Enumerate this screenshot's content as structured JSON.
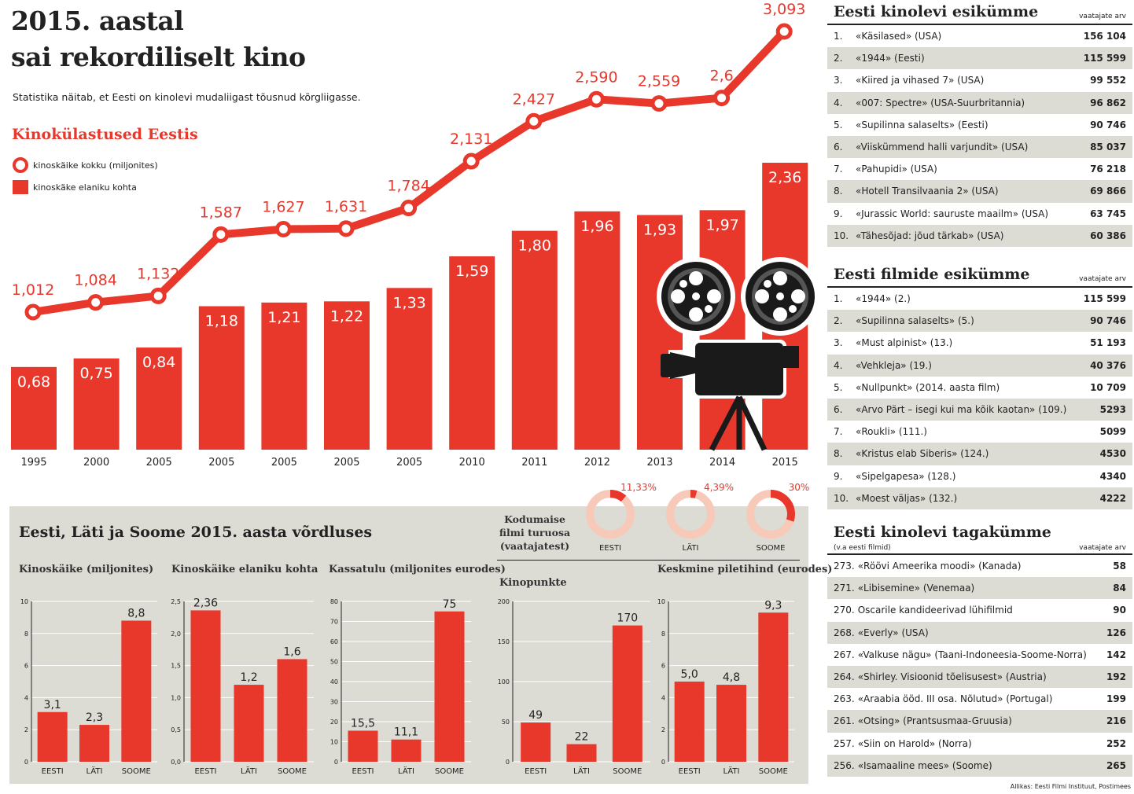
{
  "header": {
    "title_line1": "2015. aastal",
    "title_line2": "sai rekordiliselt kino",
    "subtitle": "Statistika näitab, et Eesti on kinolevi mudaliigast tõusnud kõrgliigasse.",
    "section_title": "Kinokülastused Eestis",
    "legend_line": "kinoskäike kokku (miljonites)",
    "legend_bar": "kinoskäke elaniku kohta"
  },
  "chart_data": [
    {
      "type": "bar+line",
      "categories": [
        "1995",
        "2000",
        "2005",
        "2005",
        "2005",
        "2005",
        "2005",
        "2010",
        "2011",
        "2012",
        "2013",
        "2014",
        "2015"
      ],
      "series": [
        {
          "name": "kinoskäke elaniku kohta",
          "type": "bar",
          "values": [
            0.68,
            0.75,
            0.84,
            1.18,
            1.21,
            1.22,
            1.33,
            1.59,
            1.8,
            1.96,
            1.93,
            1.97,
            2.36
          ],
          "labels": [
            "0,68",
            "0,75",
            "0,84",
            "1,18",
            "1,21",
            "1,22",
            "1,33",
            "1,59",
            "1,80",
            "1,96",
            "1,93",
            "1,97",
            "2,36"
          ]
        },
        {
          "name": "kinoskäike kokku (miljonites)",
          "type": "line",
          "values": [
            1.012,
            1.084,
            1.132,
            1.587,
            1.627,
            1.631,
            1.784,
            2.131,
            2.427,
            2.59,
            2.559,
            2.6,
            3.093
          ],
          "labels": [
            "1,012",
            "1,084",
            "1,132",
            "1,587",
            "1,627",
            "1,631",
            "1,784",
            "2,131",
            "2,427",
            "2,590",
            "2,559",
            "2,6",
            "3,093"
          ]
        }
      ],
      "color": "#e8372b"
    },
    {
      "type": "bar",
      "title": "Kinoskäike (miljonites)",
      "categories": [
        "EESTI",
        "LÄTI",
        "SOOME"
      ],
      "values": [
        3.1,
        2.3,
        8.8
      ],
      "labels": [
        "3,1",
        "2,3",
        "8,8"
      ],
      "ylim": [
        0,
        10
      ],
      "ticks": [
        "0",
        "2",
        "4",
        "6",
        "8",
        "10"
      ]
    },
    {
      "type": "bar",
      "title": "Kinoskäike elaniku kohta",
      "categories": [
        "EESTI",
        "LÄTI",
        "SOOME"
      ],
      "values": [
        2.36,
        1.2,
        1.6
      ],
      "labels": [
        "2,36",
        "1,2",
        "1,6"
      ],
      "ylim": [
        0,
        2.5
      ],
      "ticks": [
        "0,0",
        "0,5",
        "1,0",
        "1,5",
        "2,0",
        "2,5"
      ]
    },
    {
      "type": "bar",
      "title": "Kassatulu (miljonites eurodes)",
      "categories": [
        "EESTI",
        "LÄTI",
        "SOOME"
      ],
      "values": [
        15.5,
        11.1,
        75
      ],
      "labels": [
        "15,5",
        "11,1",
        "75"
      ],
      "ylim": [
        0,
        80
      ],
      "ticks": [
        "0",
        "10",
        "20",
        "30",
        "40",
        "50",
        "60",
        "70",
        "80"
      ]
    },
    {
      "type": "bar",
      "title": "Kinopunkte",
      "categories": [
        "EESTI",
        "LÄTI",
        "SOOME"
      ],
      "values": [
        49,
        22,
        170
      ],
      "labels": [
        "49",
        "22",
        "170"
      ],
      "ylim": [
        0,
        200
      ],
      "ticks": [
        "0",
        "50",
        "100",
        "150",
        "200"
      ]
    },
    {
      "type": "bar",
      "title": "Keskmine piletihind (eurodes)",
      "categories": [
        "EESTI",
        "LÄTI",
        "SOOME"
      ],
      "values": [
        5.0,
        4.8,
        9.3
      ],
      "labels": [
        "5,0",
        "4,8",
        "9,3"
      ],
      "ylim": [
        0,
        10
      ],
      "ticks": [
        "0",
        "2",
        "4",
        "6",
        "8",
        "10"
      ]
    },
    {
      "type": "pie",
      "title": "Kodumaise filmi turuosa (vaatajatest)",
      "categories": [
        "EESTI",
        "LÄTI",
        "SOOME"
      ],
      "values": [
        11.33,
        4.39,
        30
      ],
      "labels": [
        "11,33%",
        "4,39%",
        "30%"
      ]
    }
  ],
  "panel": {
    "title": "Eesti, Läti ja Soome 2015. aasta võrdluses",
    "share_title": "Kodumaise filmi turuosa (vaatajatest)"
  },
  "tables": [
    {
      "title": "Eesti kinolevi esikümme",
      "col": "vaatajate arv",
      "rows": [
        [
          "1.",
          "«Käsilased» (USA)",
          "156 104"
        ],
        [
          "2.",
          "«1944» (Eesti)",
          "115 599"
        ],
        [
          "3.",
          "«Kiired ja vihased 7» (USA)",
          "99 552"
        ],
        [
          "4.",
          "«007: Spectre» (USA-Suurbritannia)",
          "96 862"
        ],
        [
          "5.",
          "«Supilinna salaselts» (Eesti)",
          "90 746"
        ],
        [
          "6.",
          "«Viiskümmend halli varjundit» (USA)",
          "85 037"
        ],
        [
          "7.",
          "«Pahupidi» (USA)",
          "76 218"
        ],
        [
          "8.",
          "«Hotell Transilvaania 2» (USA)",
          "69 866"
        ],
        [
          "9.",
          "«Jurassic World: sauruste maailm» (USA)",
          "63 745"
        ],
        [
          "10.",
          "«Tähesõjad: jõud tärkab» (USA)",
          "60 386"
        ]
      ]
    },
    {
      "title": "Eesti filmide esikümme",
      "col": "vaatajate arv",
      "rows": [
        [
          "1.",
          "«1944» (2.)",
          "115 599"
        ],
        [
          "2.",
          "«Supilinna salaselts» (5.)",
          "90 746"
        ],
        [
          "3.",
          "«Must alpinist» (13.)",
          "51 193"
        ],
        [
          "4.",
          "«Vehkleja» (19.)",
          "40 376"
        ],
        [
          "5.",
          "«Nullpunkt» (2014. aasta film)",
          "10 709"
        ],
        [
          "6.",
          "«Arvo Pärt – isegi kui ma kõik kaotan» (109.)",
          "5293"
        ],
        [
          "7.",
          "«Roukli» (111.)",
          "5099"
        ],
        [
          "8.",
          "«Kristus elab Siberis» (124.)",
          "4530"
        ],
        [
          "9.",
          "«Sipelgapesa» (128.)",
          "4340"
        ],
        [
          "10.",
          "«Moest väljas» (132.)",
          "4222"
        ]
      ]
    },
    {
      "title": "Eesti kinolevi tagakümme",
      "sub": "(v.a eesti filmid)",
      "col": "vaatajate arv",
      "rows": [
        [
          "273.",
          "«Röövi Ameerika moodi» (Kanada)",
          "58"
        ],
        [
          "271.",
          "«Libisemine» (Venemaa)",
          "84"
        ],
        [
          "270.",
          "Oscarile kandideerivad lühifilmid",
          "90"
        ],
        [
          "268.",
          "«Everly» (USA)",
          "126"
        ],
        [
          "267.",
          "«Valkuse nägu» (Taani-Indoneesia-Soome-Norra)",
          "142"
        ],
        [
          "264.",
          "«Shirley. Visioonid tõelisusest» (Austria)",
          "192"
        ],
        [
          "263.",
          "«Araabia ööd. III osa. Nõlutud» (Portugal)",
          "199"
        ],
        [
          "261.",
          "«Otsing» (Prantsusmaa-Gruusia)",
          "216"
        ],
        [
          "257.",
          "«Siin on Harold» (Norra)",
          "252"
        ],
        [
          "256.",
          "«Isamaaline mees» (Soome)",
          "265"
        ]
      ]
    }
  ],
  "source": "Allikas: Eesti Filmi Instituut, Postimees",
  "colors": {
    "accent": "#e8372b",
    "panel": "#dcdcd5",
    "ring_light": "#f7c9b8"
  },
  "icons": {
    "projector": "film-projector-icon"
  }
}
